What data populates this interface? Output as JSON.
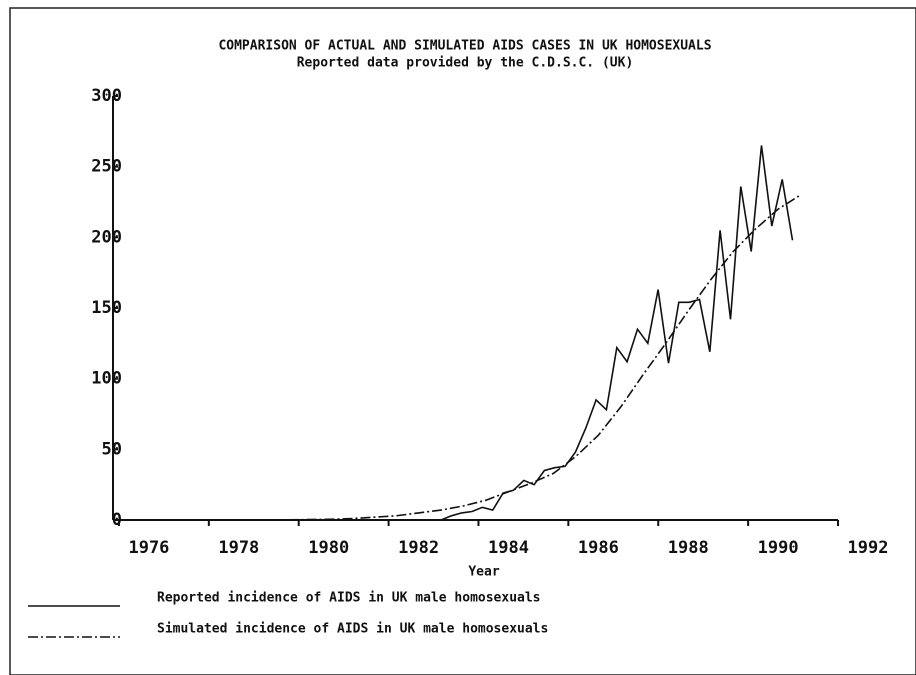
{
  "chart_data": {
    "type": "line",
    "title": "COMPARISON OF ACTUAL AND SIMULATED AIDS CASES IN UK HOMOSEXUALS",
    "subtitle": "Reported data provided by the C.D.S.C. (UK)",
    "xlabel": "Year",
    "xlim": [
      1975.2,
      1992
    ],
    "xticks": [
      1976,
      1978,
      1980,
      1982,
      1984,
      1986,
      1988,
      1990,
      1992
    ],
    "ylim": [
      0,
      300
    ],
    "yticks": [
      0,
      50,
      100,
      150,
      200,
      250,
      300
    ],
    "series": [
      {
        "name": "Reported incidence of AIDS in UK male homosexuals",
        "color": "#111111",
        "line_style": "solid",
        "x": [
          1982.5,
          1982.73,
          1982.96,
          1983.19,
          1983.42,
          1983.65,
          1983.88,
          1984.11,
          1984.34,
          1984.57,
          1984.8,
          1985.03,
          1985.26,
          1985.49,
          1985.72,
          1985.95,
          1986.18,
          1986.41,
          1986.64,
          1986.87,
          1987.1,
          1987.33,
          1987.56,
          1987.79,
          1988.02,
          1988.25,
          1988.48,
          1988.71,
          1988.94,
          1989.17,
          1989.4,
          1989.63,
          1989.86,
          1990.09,
          1990.32
        ],
        "values": [
          0,
          3,
          5,
          6,
          9,
          7,
          19,
          21,
          28,
          25,
          35,
          37,
          38,
          48,
          65,
          85,
          78,
          122,
          112,
          135,
          125,
          163,
          111,
          154,
          154,
          156,
          119,
          205,
          142,
          236,
          190,
          265,
          208,
          241,
          198
        ]
      },
      {
        "name": "Simulated incidence of AIDS in UK male homosexuals",
        "color": "#111111",
        "line_style": "dash-dot",
        "x": [
          1975.5,
          1976.5,
          1977.5,
          1978.5,
          1979.5,
          1980,
          1980.5,
          1981,
          1981.5,
          1982,
          1982.5,
          1983,
          1983.5,
          1984,
          1984.5,
          1985,
          1985.5,
          1986,
          1986.5,
          1987,
          1987.5,
          1988,
          1988.5,
          1989,
          1989.5,
          1990,
          1990.5
        ],
        "values": [
          0,
          0,
          0,
          0,
          0.3,
          0.5,
          1,
          2,
          3,
          5,
          7,
          10,
          14,
          20,
          26,
          33,
          45,
          60,
          80,
          103,
          125,
          148,
          170,
          190,
          206,
          220,
          230
        ]
      }
    ]
  }
}
